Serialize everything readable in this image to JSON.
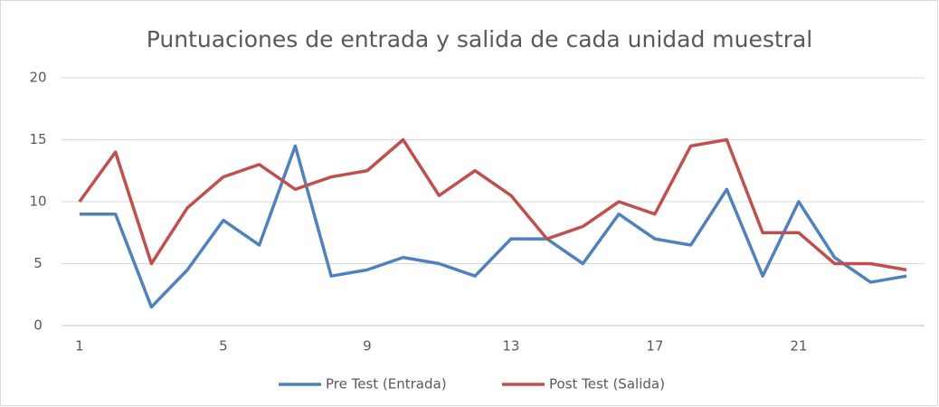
{
  "chart_data": {
    "type": "line",
    "title": "Puntuaciones de entrada y salida de cada unidad muestral",
    "categories": [
      1,
      null,
      null,
      null,
      5,
      null,
      null,
      null,
      9,
      null,
      null,
      null,
      13,
      null,
      null,
      null,
      17,
      null,
      null,
      null,
      21,
      null,
      null,
      null
    ],
    "series": [
      {
        "name": "Pre Test (Entrada)",
        "color": "#4f81bd",
        "values": [
          9,
          9,
          1.5,
          4.5,
          8.5,
          6.5,
          14.5,
          4,
          4.5,
          5.5,
          5,
          4,
          7,
          7,
          5,
          9,
          7,
          6.5,
          11,
          4,
          10,
          5.5,
          3.5,
          4
        ]
      },
      {
        "name": "Post Test (Salida)",
        "color": "#c0504d",
        "values": [
          10,
          14,
          5,
          9.5,
          12,
          13,
          11,
          12,
          12.5,
          15,
          10.5,
          12.5,
          10.5,
          7,
          8,
          10,
          9,
          14.5,
          15,
          7.5,
          7.5,
          5,
          5,
          4.5
        ]
      }
    ],
    "ylim": [
      0,
      20
    ],
    "yticks": [
      0,
      5,
      10,
      15,
      20
    ],
    "grid": true,
    "legend": "bottom"
  }
}
